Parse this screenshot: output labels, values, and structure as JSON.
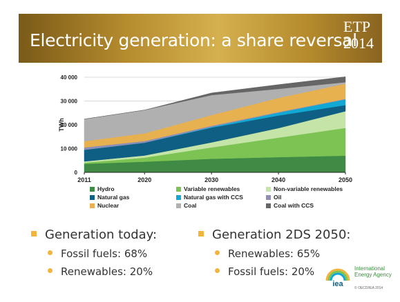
{
  "banner": {
    "title": "Electricity generation: a share reversal",
    "badge_line1": "ETP",
    "badge_line2": "2014"
  },
  "chart_data": {
    "type": "area",
    "stacked": true,
    "ylabel": "TWh",
    "x": [
      2011,
      2020,
      2030,
      2040,
      2050
    ],
    "x_ticks": [
      "2011",
      "2020",
      "2030",
      "2040",
      "2050"
    ],
    "y_ticks": [
      "0",
      "10 000",
      "20 000",
      "30 000",
      "40 000"
    ],
    "ylim": [
      0,
      40000
    ],
    "xlim": [
      2011,
      2050
    ],
    "grid": "horizontal",
    "legend_position": "bottom",
    "series": [
      {
        "name": "Hydro",
        "color": "#3f8a45",
        "values": [
          3600,
          4500,
          5700,
          6400,
          7000
        ]
      },
      {
        "name": "Variable renewables",
        "color": "#7cc354",
        "values": [
          500,
          1700,
          4800,
          8200,
          11700
        ]
      },
      {
        "name": "Non-variable renewables",
        "color": "#c4e5a7",
        "values": [
          500,
          900,
          2100,
          4000,
          7000
        ]
      },
      {
        "name": "Natural gas",
        "color": "#0f5f84",
        "values": [
          4900,
          5400,
          6200,
          5300,
          2600
        ]
      },
      {
        "name": "Natural gas with CCS",
        "color": "#11a9d4",
        "values": [
          0,
          0,
          300,
          1200,
          2400
        ]
      },
      {
        "name": "Oil",
        "color": "#8f8fb5",
        "values": [
          1000,
          700,
          500,
          300,
          200
        ]
      },
      {
        "name": "Nuclear",
        "color": "#e8b14f",
        "values": [
          2600,
          3200,
          4500,
          5900,
          6400
        ]
      },
      {
        "name": "Coal",
        "color": "#b0b0b0",
        "values": [
          9300,
          9800,
          8400,
          3800,
          600
        ]
      },
      {
        "name": "Coal with CCS",
        "color": "#666666",
        "values": [
          0,
          0,
          900,
          1800,
          2300
        ]
      }
    ]
  },
  "summary_today": {
    "heading": "Generation today:",
    "items": [
      "Fossil fuels: 68%",
      "Renewables: 20%"
    ]
  },
  "summary_2050": {
    "heading": "Generation 2DS 2050:",
    "items": [
      "Renewables:  65%",
      "Fossil fuels: 20%"
    ]
  },
  "logo": {
    "line1": "International",
    "line2": "Energy Agency",
    "mark": "iea",
    "copyright": "© OECD/IEA 2014"
  }
}
